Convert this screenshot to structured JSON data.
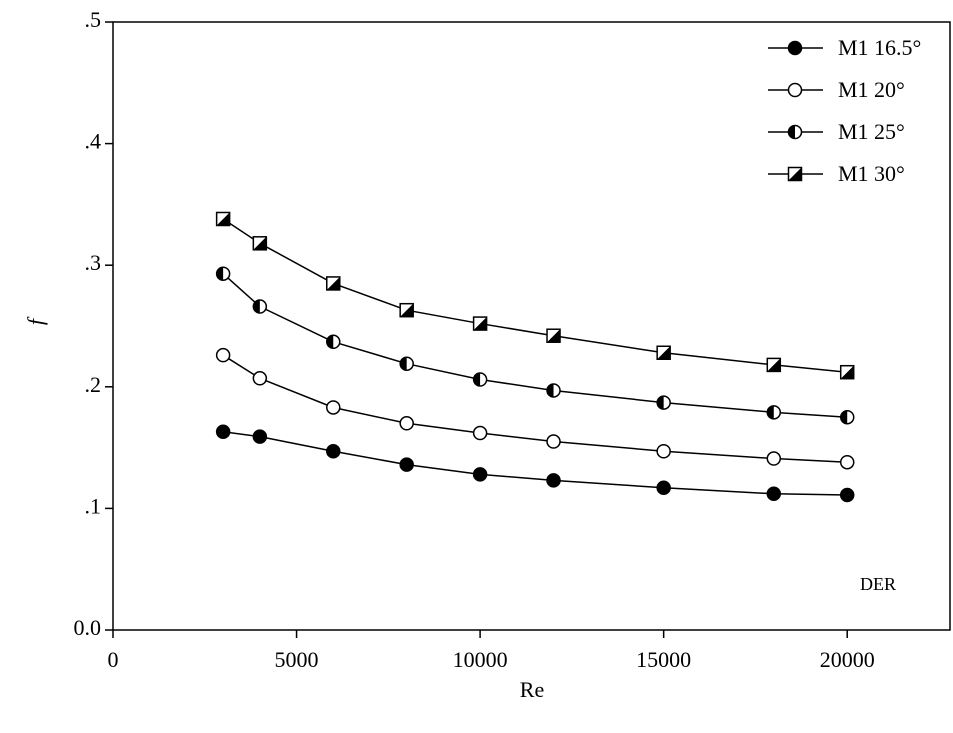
{
  "chart_data": {
    "type": "line",
    "x_label": "Re",
    "y_label": "f",
    "annotation": "DER",
    "xlim": [
      0,
      22800
    ],
    "ylim": [
      0,
      0.5
    ],
    "xticks": [
      0,
      5000,
      10000,
      15000,
      20000
    ],
    "yticks": [
      {
        "value": 0,
        "label": "0.0"
      },
      {
        "value": 0.1,
        "label": ".1"
      },
      {
        "value": 0.2,
        "label": ".2"
      },
      {
        "value": 0.3,
        "label": ".3"
      },
      {
        "value": 0.4,
        "label": ".4"
      },
      {
        "value": 0.5,
        "label": ".5"
      }
    ],
    "legend": "upper right",
    "x": [
      3000,
      4000,
      6000,
      8000,
      10000,
      12000,
      15000,
      18000,
      20000
    ],
    "series": [
      {
        "name": "M1 16.5°",
        "color": "#000000",
        "marker": "filled",
        "values": [
          0.163,
          0.159,
          0.147,
          0.136,
          0.128,
          0.123,
          0.117,
          0.112,
          0.111
        ]
      },
      {
        "name": "M1 20°",
        "color": "#000000",
        "marker": "open",
        "values": [
          0.226,
          0.207,
          0.183,
          0.17,
          0.162,
          0.155,
          0.147,
          0.141,
          0.138
        ]
      },
      {
        "name": "M1 25°",
        "color": "#000000",
        "marker": "half-circle",
        "values": [
          0.293,
          0.266,
          0.237,
          0.219,
          0.206,
          0.197,
          0.187,
          0.179,
          0.175
        ]
      },
      {
        "name": "M1 30°",
        "color": "#000000",
        "marker": "half-square",
        "values": [
          0.338,
          0.318,
          0.285,
          0.263,
          0.252,
          0.242,
          0.228,
          0.218,
          0.212
        ]
      }
    ]
  }
}
